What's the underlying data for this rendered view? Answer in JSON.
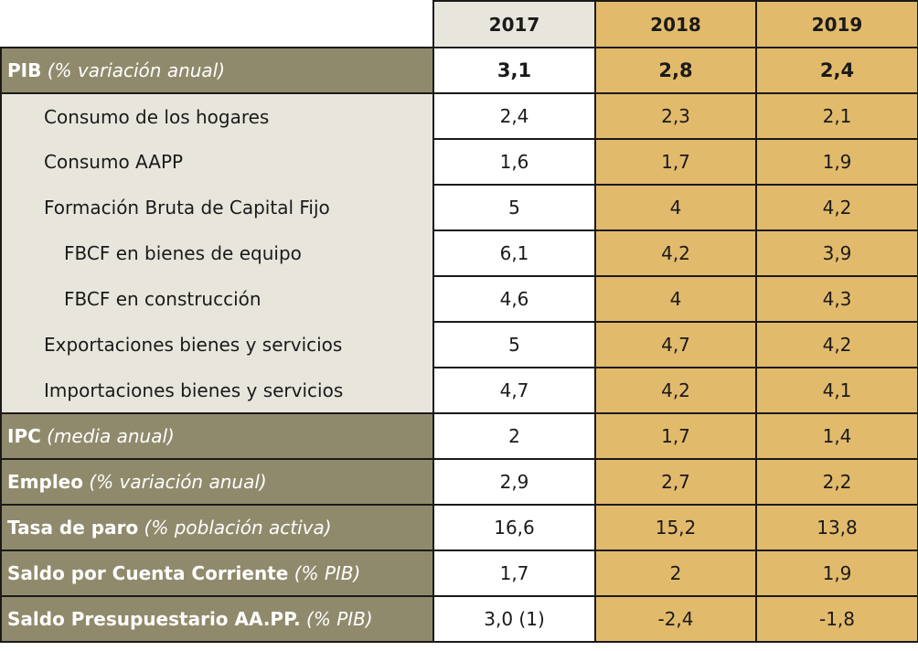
{
  "years": [
    "2017",
    "2018",
    "2019"
  ],
  "rows": [
    {
      "bold": "PIB",
      "italic": "(% variación anual)",
      "values": [
        "3,1",
        "2,8",
        "2,4"
      ]
    },
    {
      "label": "Consumo de los hogares",
      "values": [
        "2,4",
        "2,3",
        "2,1"
      ]
    },
    {
      "label": "Consumo AAPP",
      "values": [
        "1,6",
        "1,7",
        "1,9"
      ]
    },
    {
      "label": "Formación Bruta de Capital Fijo",
      "values": [
        "5",
        "4",
        "4,2"
      ]
    },
    {
      "label": "FBCF en bienes de equipo",
      "values": [
        "6,1",
        "4,2",
        "3,9"
      ]
    },
    {
      "label": "FBCF en construcción",
      "values": [
        "4,6",
        "4",
        "4,3"
      ]
    },
    {
      "label": "Exportaciones bienes y servicios",
      "values": [
        "5",
        "4,7",
        "4,2"
      ]
    },
    {
      "label": "Importaciones bienes y servicios",
      "values": [
        "4,7",
        "4,2",
        "4,1"
      ]
    },
    {
      "bold": "IPC",
      "italic": "(media anual)",
      "values": [
        "2",
        "1,7",
        "1,4"
      ]
    },
    {
      "bold": "Empleo",
      "italic": "(% variación anual)",
      "values": [
        "2,9",
        "2,7",
        "2,2"
      ]
    },
    {
      "bold": "Tasa de paro",
      "italic": "(% población activa)",
      "values": [
        "16,6",
        "15,2",
        "13,8"
      ]
    },
    {
      "bold": "Saldo por Cuenta Corriente",
      "italic": "(% PIB)",
      "values": [
        "1,7",
        "2",
        "1,9"
      ]
    },
    {
      "bold": "Saldo Presupuestario AA.PP.",
      "italic": "(% PIB)",
      "values": [
        "3,0 (1)",
        "-2,4",
        "-1,8"
      ]
    }
  ],
  "colors": {
    "header_label_bg": "#908a6c",
    "sub_label_bg": "#e8e6dc",
    "year_2017_bg": "#e8e6dc",
    "forecast_bg": "#e2ba6c",
    "border": "#1a1a1a"
  }
}
